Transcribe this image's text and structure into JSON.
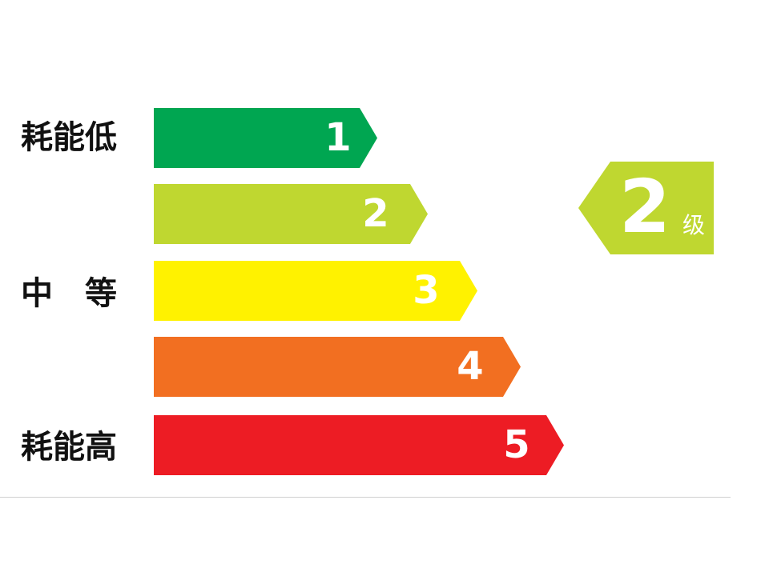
{
  "labels": {
    "low": "耗能低",
    "mid": "中　等",
    "high": "耗能高"
  },
  "grades": [
    {
      "number": "1",
      "color": "#00a651"
    },
    {
      "number": "2",
      "color": "#bfd730"
    },
    {
      "number": "3",
      "color": "#fff200"
    },
    {
      "number": "4",
      "color": "#f26f21"
    },
    {
      "number": "5",
      "color": "#ed1c24"
    }
  ],
  "current_grade": {
    "number": "2",
    "unit": "级",
    "color": "#bfd730"
  }
}
